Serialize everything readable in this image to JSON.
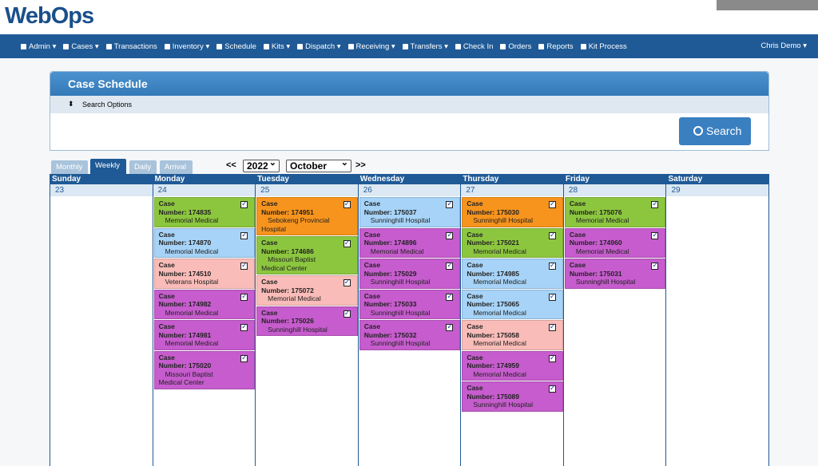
{
  "logo": "WebOps",
  "nav": {
    "items": [
      "Admin",
      "Cases",
      "Transactions",
      "Inventory",
      "Schedule",
      "Kits",
      "Dispatch",
      "Receiving",
      "Transfers",
      "Check In",
      "Orders",
      "Reports",
      "Kit Process"
    ],
    "user": "Chris Demo"
  },
  "panel": {
    "title": "Case Schedule",
    "search_options": "Search Options",
    "search_button": "Search"
  },
  "tabs": [
    "Monthly",
    "Weekly",
    "Daily",
    "Arrival"
  ],
  "picker": {
    "prev": "<<",
    "year": "2022",
    "month": "October",
    "next": ">>"
  },
  "card_labels": {
    "case": "Case",
    "number": "Number:"
  },
  "days": [
    {
      "name": "Sunday",
      "date": "23",
      "cases": []
    },
    {
      "name": "Monday",
      "date": "24",
      "cases": [
        {
          "number": "174835",
          "hospital": "Memorial Medical",
          "color": "#8cc63f"
        },
        {
          "number": "174870",
          "hospital": "Memorial Medical",
          "color": "#a6d3f7"
        },
        {
          "number": "174510",
          "hospital": "Veterans Hospital",
          "color": "#f9bcb8"
        },
        {
          "number": "174982",
          "hospital": "Memorial Medical",
          "color": "#c65ccd"
        },
        {
          "number": "174981",
          "hospital": "Memorial Medical",
          "color": "#c65ccd"
        },
        {
          "number": "175020",
          "hospital": "Missouri Baptist Medical Center",
          "color": "#c65ccd"
        }
      ]
    },
    {
      "name": "Tuesday",
      "date": "25",
      "cases": [
        {
          "number": "174951",
          "hospital": "Sebokeng Provincial Hospital",
          "color": "#f7941d"
        },
        {
          "number": "174686",
          "hospital": "Missouri Baptist Medical Center",
          "color": "#8cc63f"
        },
        {
          "number": "175072",
          "hospital": "Memorial Medical",
          "color": "#f9bcb8"
        },
        {
          "number": "175026",
          "hospital": "Sunninghill Hospital",
          "color": "#c65ccd"
        }
      ]
    },
    {
      "name": "Wednesday",
      "date": "26",
      "cases": [
        {
          "number": "175037",
          "hospital": "Sunninghill Hospital",
          "color": "#a6d3f7"
        },
        {
          "number": "174896",
          "hospital": "Memorial Medical",
          "color": "#c65ccd"
        },
        {
          "number": "175029",
          "hospital": "Sunninghill Hospital",
          "color": "#c65ccd"
        },
        {
          "number": "175033",
          "hospital": "Sunninghill Hospital",
          "color": "#c65ccd"
        },
        {
          "number": "175032",
          "hospital": "Sunninghill Hospital",
          "color": "#c65ccd"
        }
      ]
    },
    {
      "name": "Thursday",
      "date": "27",
      "cases": [
        {
          "number": "175030",
          "hospital": "Sunninghill Hospital",
          "color": "#f7941d"
        },
        {
          "number": "175021",
          "hospital": "Memorial Medical",
          "color": "#8cc63f"
        },
        {
          "number": "174985",
          "hospital": "Memorial Medical",
          "color": "#a6d3f7"
        },
        {
          "number": "175065",
          "hospital": "Memorial Medical",
          "color": "#a6d3f7"
        },
        {
          "number": "175058",
          "hospital": "Memorial Medical",
          "color": "#f9bcb8"
        },
        {
          "number": "174959",
          "hospital": "Memorial Medical",
          "color": "#c65ccd"
        },
        {
          "number": "175089",
          "hospital": "Sunninghill Hospital",
          "color": "#c65ccd"
        }
      ]
    },
    {
      "name": "Friday",
      "date": "28",
      "cases": [
        {
          "number": "175076",
          "hospital": "Memorial Medical",
          "color": "#8cc63f"
        },
        {
          "number": "174960",
          "hospital": "Memorial Medical",
          "color": "#c65ccd"
        },
        {
          "number": "175031",
          "hospital": "Sunninghill Hospital",
          "color": "#c65ccd"
        }
      ]
    },
    {
      "name": "Saturday",
      "date": "29",
      "cases": []
    }
  ]
}
